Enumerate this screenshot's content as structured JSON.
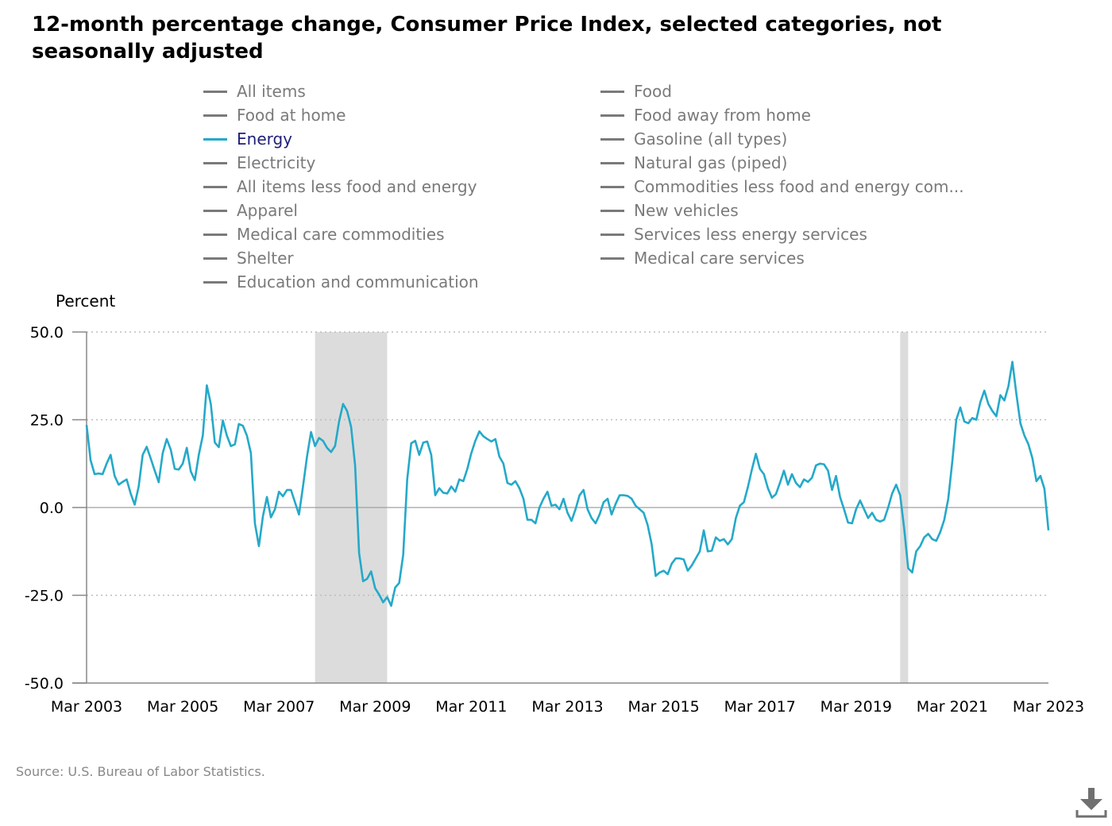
{
  "title": "12-month percentage change, Consumer Price Index, selected categories, not seasonally adjusted",
  "legend": {
    "left": [
      "All items",
      "Food at home",
      "Energy",
      "Electricity",
      "All items less food and energy",
      "Apparel",
      "Medical care commodities",
      "Shelter",
      "Education and communication"
    ],
    "right": [
      "Food",
      "Food away from home",
      "Gasoline (all types)",
      "Natural gas (piped)",
      "Commodities less food and energy com...",
      "New vehicles",
      "Services less energy services",
      "Medical care services"
    ],
    "active": "Energy"
  },
  "source": "Source: U.S. Bureau of Labor Statistics.",
  "download_icon": "download-icon",
  "colors": {
    "energy_line": "#24a9c9",
    "legend_inactive": "#7a7a7a",
    "recession_band": "#dcdcdc",
    "grid": "#bdbdbd"
  },
  "chart_data": {
    "type": "line",
    "ylabel": "Percent",
    "ylim": [
      -50,
      50
    ],
    "yticks": [
      "50.0",
      "25.0",
      "0.0",
      "-25.0",
      "-50.0"
    ],
    "ytick_values": [
      50,
      25,
      0,
      -25,
      -50
    ],
    "xtick_labels": [
      "Mar 2003",
      "Mar 2005",
      "Mar 2007",
      "Mar 2009",
      "Mar 2011",
      "Mar 2013",
      "Mar 2015",
      "Mar 2017",
      "Mar 2019",
      "Mar 2021",
      "Mar 2023"
    ],
    "x_start": "2003-03",
    "x_end": "2023-03",
    "grid": "dotted horizontal",
    "recessions": [
      [
        "2007-12",
        "2009-06"
      ],
      [
        "2020-02",
        "2020-04"
      ]
    ],
    "series": [
      {
        "name": "Energy",
        "monthly_start": "2003-03",
        "values": [
          23.5,
          13.5,
          9.5,
          9.7,
          9.5,
          12.5,
          15,
          9,
          6.5,
          7.3,
          8,
          4,
          0.8,
          6,
          15,
          17.3,
          14,
          10.5,
          7.2,
          15.5,
          19.5,
          16.5,
          11,
          10.8,
          12.5,
          17,
          10.3,
          7.8,
          15,
          20.5,
          34.8,
          29.5,
          18.5,
          17.2,
          24.8,
          20.5,
          17.5,
          18,
          23.8,
          23.3,
          20.5,
          15.5,
          -4.5,
          -11,
          -2.5,
          3,
          -2.8,
          -0.5,
          4.5,
          3.2,
          5,
          5,
          1.5,
          -2,
          6,
          14.5,
          21.5,
          17.5,
          19.8,
          19,
          17,
          15.8,
          17.5,
          24.5,
          29.5,
          27.5,
          23,
          12,
          -13,
          -21,
          -20.3,
          -18.2,
          -23,
          -24.8,
          -27,
          -25.5,
          -28,
          -22.8,
          -21.5,
          -13.5,
          8,
          18.3,
          19,
          15,
          18.5,
          18.8,
          15,
          3.5,
          5.5,
          4.2,
          4,
          6,
          4.5,
          8,
          7.5,
          11,
          15.5,
          19,
          21.7,
          20.3,
          19.5,
          18.8,
          19.5,
          14.5,
          12.5,
          7,
          6.5,
          7.5,
          5.5,
          2.5,
          -3.5,
          -3.5,
          -4.5,
          0,
          2.5,
          4.5,
          0.5,
          0.8,
          -0.5,
          2.5,
          -1.5,
          -3.8,
          -0.5,
          3.5,
          5,
          -0.5,
          -3,
          -4.5,
          -2,
          1.5,
          2.5,
          -2,
          1,
          3.5,
          3.5,
          3.3,
          2.5,
          0.5,
          -0.5,
          -1.5,
          -5,
          -10.5,
          -19.5,
          -18.5,
          -18,
          -19,
          -16,
          -14.5,
          -14.5,
          -14.8,
          -18,
          -16.5,
          -14.5,
          -12.5,
          -6.5,
          -12.5,
          -12.3,
          -8.5,
          -9.5,
          -9,
          -10.5,
          -9,
          -3,
          0.5,
          1.5,
          5.8,
          10.8,
          15.3,
          11,
          9.5,
          5.5,
          2.8,
          3.8,
          7,
          10.5,
          6.5,
          9.5,
          7,
          5.8,
          8,
          7.3,
          8.5,
          12,
          12.5,
          12.3,
          10.5,
          5,
          9,
          3,
          -0.5,
          -4.3,
          -4.5,
          -0.5,
          2,
          -0.5,
          -3,
          -1.5,
          -3.5,
          -4,
          -3.5,
          0,
          4,
          6.5,
          3.5,
          -6,
          -17.3,
          -18.5,
          -12.5,
          -11,
          -8.5,
          -7.5,
          -9,
          -9.5,
          -7,
          -3.5,
          2.5,
          13,
          25,
          28.5,
          24.5,
          24,
          25.5,
          25,
          30,
          33.3,
          29.5,
          27.5,
          26,
          32,
          30.5,
          34.5,
          41.5,
          32.3,
          24,
          20.5,
          18,
          14,
          7.5,
          9,
          5.3,
          -6.5
        ]
      }
    ]
  }
}
